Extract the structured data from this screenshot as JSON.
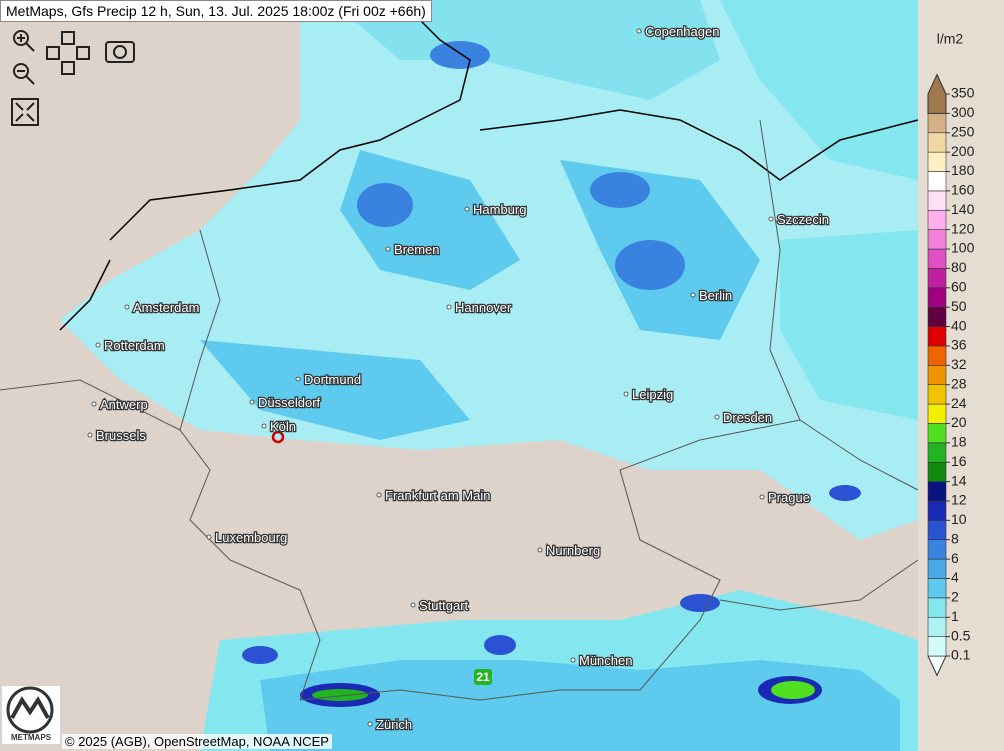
{
  "header": {
    "title": "MetMaps, Gfs Precip 12 h, Sun, 13. Jul. 2025 18:00z (Fri 00z +66h)"
  },
  "cities": [
    "Copenhagen",
    "Hamburg",
    "Szczecin",
    "Bremen",
    "Berlin",
    "Amsterdam",
    "Hannover",
    "Rotterdam",
    "Dortmund",
    "Leipzig",
    "Antwerp",
    "Düsseldorf",
    "Dresden",
    "Brussels",
    "Köln",
    "Frankfurt am Main",
    "Prague",
    "Luxembourg",
    "Nurnberg",
    "Stuttgart",
    "München",
    "Zürich"
  ],
  "marker_label": "21",
  "legend": {
    "unit": "l/m2",
    "levels": [
      0.1,
      0.5,
      1,
      2,
      4,
      6,
      8,
      10,
      12,
      14,
      16,
      18,
      20,
      24,
      28,
      32,
      36,
      40,
      50,
      60,
      80,
      100,
      120,
      140,
      160,
      180,
      200,
      250,
      300,
      350
    ],
    "colors": [
      "#f4ffff",
      "#d4fbfb",
      "#b0f2f4",
      "#84e6ee",
      "#5ecbee",
      "#48aae8",
      "#3a82e0",
      "#2a52d2",
      "#1a2ab4",
      "#0a1480",
      "#108a10",
      "#22b422",
      "#50e020",
      "#f0f000",
      "#f0c400",
      "#f09400",
      "#f06400",
      "#e00000",
      "#600040",
      "#a00080",
      "#c020a0",
      "#e050c0",
      "#f080d8",
      "#ffb0ec",
      "#ffe0f8",
      "#ffffff",
      "#fff0c4",
      "#f0d8a4",
      "#d4b084",
      "#a07850"
    ]
  },
  "logo": "METMAPS",
  "attribution": "© 2025 (AGB), OpenStreetMap, NOAA NCEP"
}
